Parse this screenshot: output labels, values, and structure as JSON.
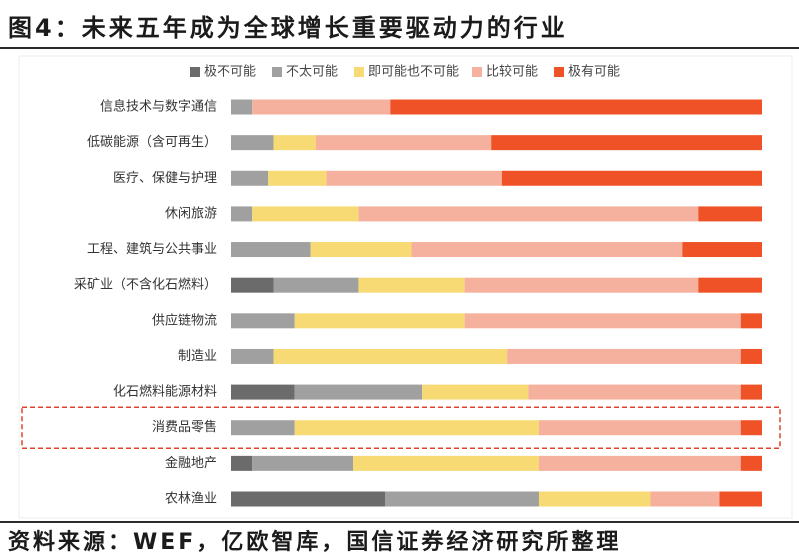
{
  "figure": {
    "title": "图4：未来五年成为全球增长重要驱动力的行业",
    "source": "资料来源：WEF，亿欧智库，国信证券经济研究所整理"
  },
  "chart_data": {
    "type": "bar",
    "orientation": "horizontal",
    "stacking": "percent",
    "categories": [
      "信息技术与数字通信",
      "低碳能源（含可再生）",
      "医疗、保健与护理",
      "休闲旅游",
      "工程、建筑与公共事业",
      "采矿业（不含化石燃料）",
      "供应链物流",
      "制造业",
      "化石燃料能源材料",
      "消费品零售",
      "金融地产",
      "农林渔业"
    ],
    "series": [
      {
        "name": "极不可能",
        "color": "#6b6b6b",
        "values": [
          0,
          0,
          0,
          0,
          0,
          8,
          0,
          0,
          12,
          0,
          4,
          29
        ]
      },
      {
        "name": "不太可能",
        "color": "#a0a0a0",
        "values": [
          4,
          8,
          7,
          4,
          15,
          16,
          12,
          8,
          24,
          12,
          19,
          29
        ]
      },
      {
        "name": "即可能也不可能",
        "color": "#f7da74",
        "values": [
          0,
          8,
          11,
          20,
          19,
          20,
          32,
          44,
          20,
          46,
          35,
          21
        ]
      },
      {
        "name": "比较可能",
        "color": "#f5b19d",
        "values": [
          26,
          33,
          33,
          64,
          51,
          44,
          52,
          44,
          40,
          38,
          38,
          13
        ]
      },
      {
        "name": "极有可能",
        "color": "#ef5226",
        "values": [
          70,
          51,
          49,
          12,
          15,
          12,
          4,
          4,
          4,
          4,
          4,
          8
        ]
      }
    ],
    "xlim": [
      0,
      100
    ],
    "highlighted_category_index": 9,
    "highlight_color": "#e0412b",
    "legend": "top",
    "grid": false
  }
}
